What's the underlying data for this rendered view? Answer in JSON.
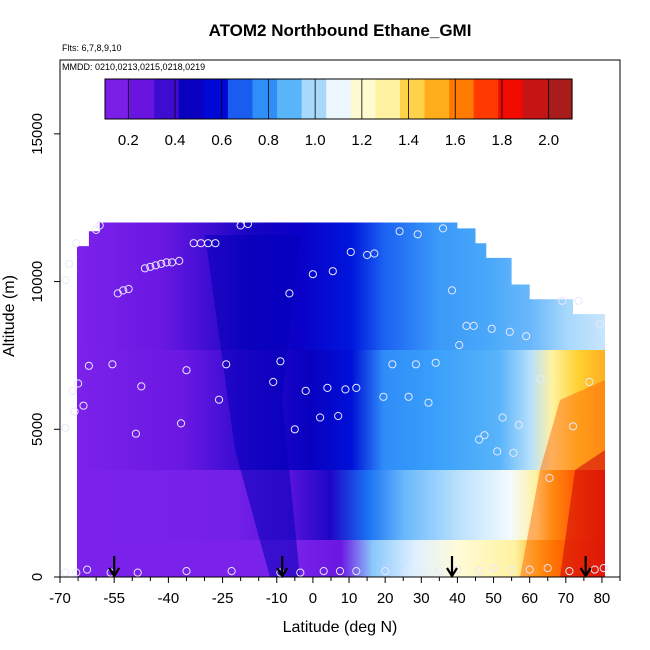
{
  "chart_data": {
    "type": "heatmap",
    "title": "ATOM2 Northbound Ethane_GMI",
    "subtitle_flights": "Flts: 6,7,8,9,10",
    "subtitle_dates": "MMDD: 0210,0213,0215,0218,0219",
    "xlabel": "Latitude (deg N)",
    "ylabel": "Altitude (m)",
    "xlim": [
      -70,
      85
    ],
    "ylim": [
      0,
      17500
    ],
    "x_ticks": [
      -70,
      -55,
      -40,
      -25,
      -10,
      0,
      10,
      20,
      30,
      40,
      50,
      60,
      70,
      80
    ],
    "x_minor_ticks": [
      -65,
      -60,
      -50,
      -45,
      -35,
      -30,
      -20,
      -15,
      -5,
      5,
      15,
      25,
      35,
      45,
      55,
      65,
      75,
      85
    ],
    "y_ticks": [
      0,
      5000,
      10000,
      15000
    ],
    "colorbar": {
      "min": 0.1,
      "max": 2.1,
      "ticks": [
        0.2,
        0.4,
        0.6,
        0.8,
        1.0,
        1.2,
        1.4,
        1.6,
        1.8,
        2.0
      ],
      "tick_labels": [
        "0.2",
        "0.4",
        "0.6",
        "0.8",
        "1.0",
        "1.2",
        "1.4",
        "1.6",
        "1.8",
        "2.0"
      ],
      "colors": [
        "#7a1ee8",
        "#6a14e0",
        "#3d0cd0",
        "#0a00c0",
        "#0008d6",
        "#1a5cf0",
        "#2f8ff8",
        "#5ab4fa",
        "#a8d8fc",
        "#ecf7ff",
        "#fffbd0",
        "#fff2a0",
        "#ffd24a",
        "#ffad1a",
        "#ff7a00",
        "#ff3a00",
        "#f00a00",
        "#c41414",
        "#a81c1c"
      ]
    },
    "ceiling": [
      {
        "lat": -69,
        "alt": 10800
      },
      {
        "lat": -66,
        "alt": 11200
      },
      {
        "lat": -62,
        "alt": 11700
      },
      {
        "lat": -59,
        "alt": 12000
      },
      {
        "lat": -10,
        "alt": 12000
      },
      {
        "lat": 40,
        "alt": 11800
      },
      {
        "lat": 45,
        "alt": 11300
      },
      {
        "lat": 48,
        "alt": 10800
      },
      {
        "lat": 55,
        "alt": 9900
      },
      {
        "lat": 60,
        "alt": 9400
      },
      {
        "lat": 72,
        "alt": 8900
      },
      {
        "lat": 80,
        "alt": 8900
      }
    ],
    "arrows_lat": [
      -55,
      -8.5,
      38.5,
      75.5
    ],
    "series": [
      {
        "name": "flight_samples",
        "points": [
          {
            "x": -68.5,
            "y": 10050
          },
          {
            "x": -67.5,
            "y": 10600
          },
          {
            "x": -66.5,
            "y": 6300
          },
          {
            "x": -68.5,
            "y": 5050
          },
          {
            "x": -66,
            "y": 5600
          },
          {
            "x": -65,
            "y": 6550
          },
          {
            "x": -63.5,
            "y": 5800
          },
          {
            "x": -62,
            "y": 7150
          },
          {
            "x": -65.5,
            "y": 11300
          },
          {
            "x": -60,
            "y": 11750
          },
          {
            "x": -59,
            "y": 11900
          },
          {
            "x": -55.5,
            "y": 7200
          },
          {
            "x": -54,
            "y": 9600
          },
          {
            "x": -52.5,
            "y": 9700
          },
          {
            "x": -51,
            "y": 9750
          },
          {
            "x": -47.5,
            "y": 6450
          },
          {
            "x": -49,
            "y": 4850
          },
          {
            "x": -46.5,
            "y": 10450
          },
          {
            "x": -45,
            "y": 10500
          },
          {
            "x": -43.5,
            "y": 10550
          },
          {
            "x": -42,
            "y": 10600
          },
          {
            "x": -40.5,
            "y": 10650
          },
          {
            "x": -39,
            "y": 10650
          },
          {
            "x": -37,
            "y": 10700
          },
          {
            "x": -36.5,
            "y": 5200
          },
          {
            "x": -35,
            "y": 7000
          },
          {
            "x": -33,
            "y": 11300
          },
          {
            "x": -31,
            "y": 11300
          },
          {
            "x": -29,
            "y": 11300
          },
          {
            "x": -27,
            "y": 11300
          },
          {
            "x": -26,
            "y": 6000
          },
          {
            "x": -24,
            "y": 7200
          },
          {
            "x": -20,
            "y": 11900
          },
          {
            "x": -18,
            "y": 11950
          },
          {
            "x": -11,
            "y": 6600
          },
          {
            "x": -9,
            "y": 7300
          },
          {
            "x": -6.5,
            "y": 9600
          },
          {
            "x": -5,
            "y": 5000
          },
          {
            "x": -2,
            "y": 6300
          },
          {
            "x": 0,
            "y": 10250
          },
          {
            "x": 2,
            "y": 5400
          },
          {
            "x": 4,
            "y": 6400
          },
          {
            "x": 5.5,
            "y": 10350
          },
          {
            "x": 7,
            "y": 5450
          },
          {
            "x": 9,
            "y": 6350
          },
          {
            "x": 10.5,
            "y": 11000
          },
          {
            "x": 12,
            "y": 6400
          },
          {
            "x": 15,
            "y": 10900
          },
          {
            "x": 17,
            "y": 10950
          },
          {
            "x": 19.5,
            "y": 6100
          },
          {
            "x": 22,
            "y": 7200
          },
          {
            "x": 24,
            "y": 11700
          },
          {
            "x": 26.5,
            "y": 6100
          },
          {
            "x": 29,
            "y": 11600
          },
          {
            "x": 28.5,
            "y": 7200
          },
          {
            "x": 32,
            "y": 5900
          },
          {
            "x": 34,
            "y": 7250
          },
          {
            "x": 36,
            "y": 11800
          },
          {
            "x": 38.5,
            "y": 9700
          },
          {
            "x": 40.5,
            "y": 7850
          },
          {
            "x": 42.5,
            "y": 8500
          },
          {
            "x": 44.5,
            "y": 8500
          },
          {
            "x": 46,
            "y": 4650
          },
          {
            "x": 47.5,
            "y": 4800
          },
          {
            "x": 49.5,
            "y": 8400
          },
          {
            "x": 51,
            "y": 4250
          },
          {
            "x": 52.5,
            "y": 5400
          },
          {
            "x": 54.5,
            "y": 8300
          },
          {
            "x": 55.5,
            "y": 4200
          },
          {
            "x": 57,
            "y": 5150
          },
          {
            "x": 59,
            "y": 8150
          },
          {
            "x": 63,
            "y": 6700
          },
          {
            "x": 65.5,
            "y": 3350
          },
          {
            "x": 69,
            "y": 9350
          },
          {
            "x": 72,
            "y": 5100
          },
          {
            "x": 73.5,
            "y": 9350
          },
          {
            "x": 76.5,
            "y": 6600
          },
          {
            "x": 79.5,
            "y": 8550
          },
          {
            "x": -68.5,
            "y": 150
          },
          {
            "x": -65.5,
            "y": 150
          },
          {
            "x": -62.5,
            "y": 250
          },
          {
            "x": -56,
            "y": 150
          },
          {
            "x": -48.5,
            "y": 150
          },
          {
            "x": -35,
            "y": 200
          },
          {
            "x": -22.5,
            "y": 200
          },
          {
            "x": -9,
            "y": 150
          },
          {
            "x": -3.5,
            "y": 150
          },
          {
            "x": 3,
            "y": 200
          },
          {
            "x": 7.5,
            "y": 200
          },
          {
            "x": 12,
            "y": 200
          },
          {
            "x": 20,
            "y": 200
          },
          {
            "x": 26,
            "y": 200
          },
          {
            "x": 30,
            "y": 200
          },
          {
            "x": 35,
            "y": 200
          },
          {
            "x": 40,
            "y": 250
          },
          {
            "x": 46,
            "y": 200
          },
          {
            "x": 50,
            "y": 300
          },
          {
            "x": 55,
            "y": 250
          },
          {
            "x": 60,
            "y": 250
          },
          {
            "x": 65,
            "y": 300
          },
          {
            "x": 71,
            "y": 200
          },
          {
            "x": 78,
            "y": 250
          },
          {
            "x": 80.5,
            "y": 300
          }
        ]
      }
    ]
  }
}
